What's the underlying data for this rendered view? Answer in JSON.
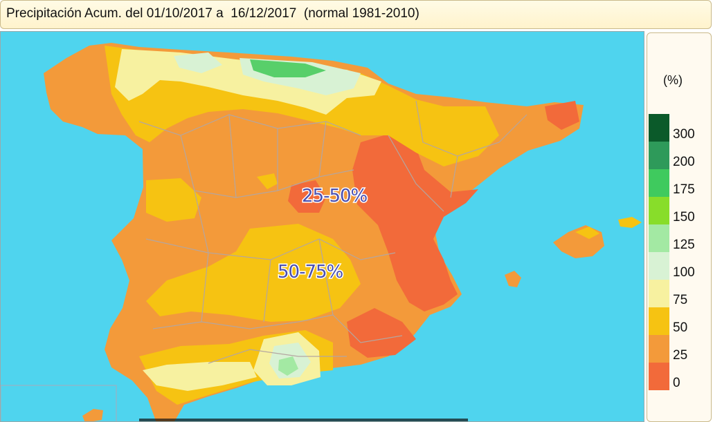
{
  "header": {
    "title": "Precipitación Acum. del 01/10/2017 a  16/12/2017  (normal 1981-2010)"
  },
  "map": {
    "labels": [
      "25-50%",
      "50-75%"
    ],
    "colors": {
      "sea": "#4fd4ee",
      "land_base": "#f39a3a",
      "p0_25": "#f26a3a",
      "p25_50": "#f39a3a",
      "p50_75": "#f6c312",
      "p75_100": "#f7f1a0",
      "p100_125": "#d8f2d4",
      "p125_150": "#a3e9a3",
      "p150_175": "#58cf6a",
      "border": "#b4a6a0"
    }
  },
  "legend": {
    "unit": "(%)",
    "ticks": [
      "300",
      "200",
      "175",
      "150",
      "125",
      "100",
      "75",
      "50",
      "25",
      "0"
    ],
    "bins": [
      {
        "color": "#0b5a2a"
      },
      {
        "color": "#2e9a5a"
      },
      {
        "color": "#3fca5e"
      },
      {
        "color": "#88dd2a"
      },
      {
        "color": "#a3e9a3"
      },
      {
        "color": "#d8f2d4"
      },
      {
        "color": "#f7f1a0"
      },
      {
        "color": "#f6c312"
      },
      {
        "color": "#f39a3a"
      },
      {
        "color": "#f26a3a"
      }
    ]
  }
}
